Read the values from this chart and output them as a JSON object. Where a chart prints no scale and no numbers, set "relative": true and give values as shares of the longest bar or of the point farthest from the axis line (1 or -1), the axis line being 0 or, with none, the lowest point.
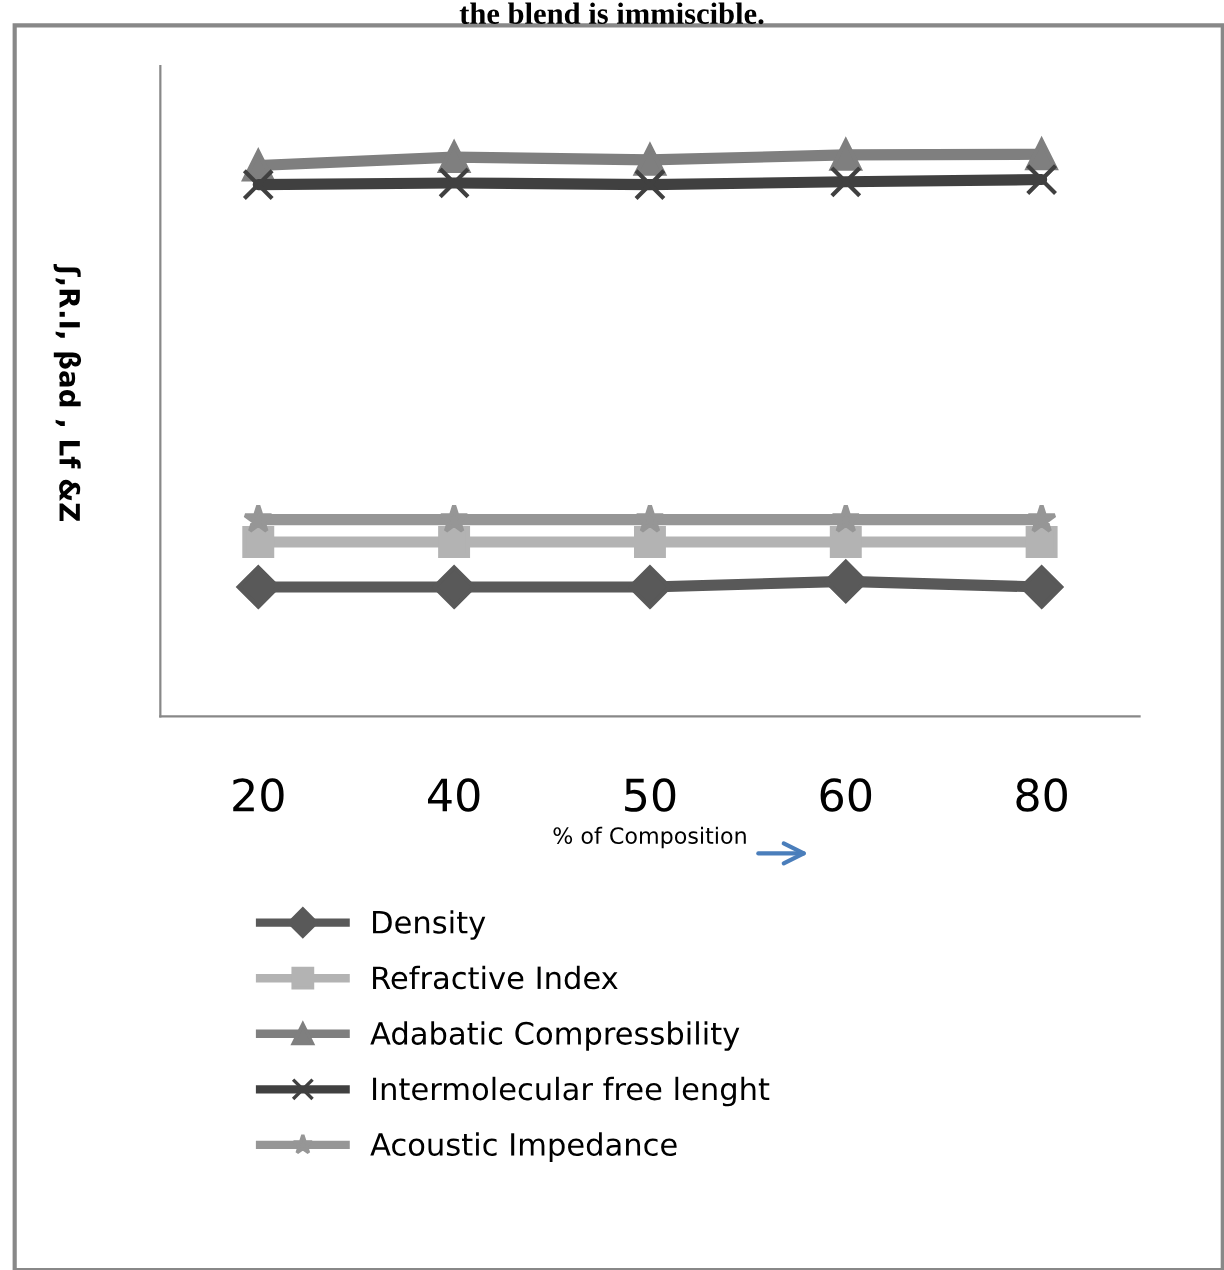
{
  "chart_data": {
    "type": "line",
    "title": "the blend is immiscible.",
    "relative": true,
    "xlabel": "% of Composition",
    "ylabel": "ʃ,R.I, βad , Lf &Z",
    "categories": [
      "20",
      "40",
      "50",
      "60",
      "80"
    ],
    "grid": false,
    "legend": "bottom",
    "line_style": "solid",
    "series": [
      {
        "name": "Density",
        "color": "#595959",
        "marker": "diamond",
        "values": [
          0.23,
          0.23,
          0.23,
          0.24,
          0.23
        ]
      },
      {
        "name": "Refractive Index",
        "color": "#b3b3b3",
        "marker": "square",
        "values": [
          0.31,
          0.31,
          0.31,
          0.31,
          0.31
        ]
      },
      {
        "name": "Adabatic Compressbility",
        "color": "#7f7f7f",
        "marker": "triangle",
        "values": [
          0.98,
          0.995,
          0.99,
          0.999,
          1.0
        ]
      },
      {
        "name": "Intermolecular free lenght",
        "color": "#404040",
        "marker": "cross",
        "values": [
          0.946,
          0.949,
          0.946,
          0.951,
          0.955
        ]
      },
      {
        "name": "Acoustic Impedance",
        "color": "#969696",
        "marker": "star",
        "values": [
          0.35,
          0.35,
          0.35,
          0.35,
          0.35
        ]
      }
    ]
  }
}
